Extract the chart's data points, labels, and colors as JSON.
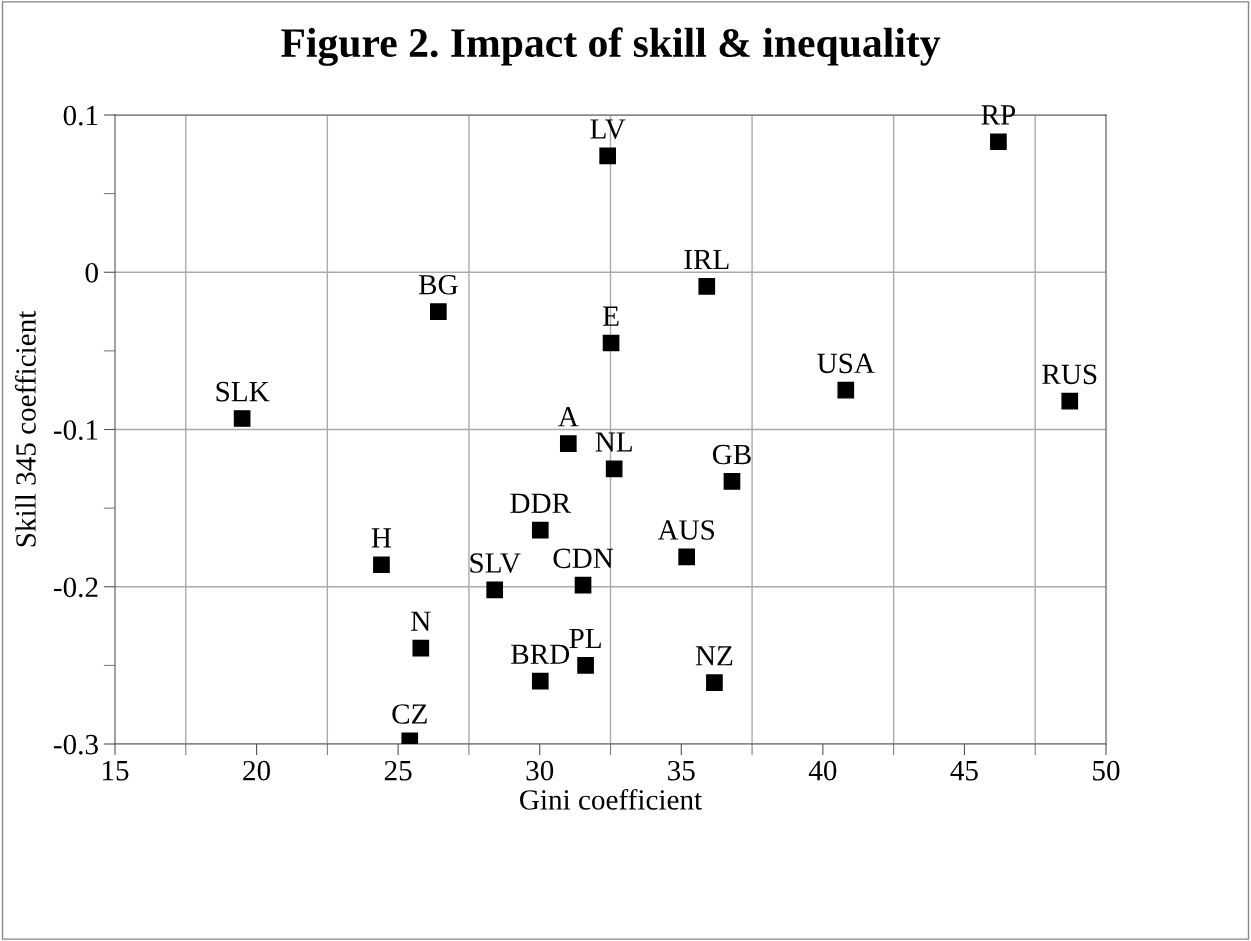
{
  "chart_data": {
    "type": "scatter",
    "title": "Figure 2. Impact of skill & inequality",
    "xlabel": "Gini coefficient",
    "ylabel": "Skill 345 coefficient",
    "x": [
      19.49,
      26.42,
      24.41,
      25.8,
      25.41,
      28.41,
      30.02,
      30.02,
      31.01,
      31.53,
      31.62,
      32.52,
      32.4,
      32.63,
      35.9,
      40.81,
      48.72,
      46.2,
      36.79,
      35.19,
      36.17
    ],
    "series": [
      {
        "color": "#000000",
        "values": [
          -0.093,
          -0.025,
          -0.186,
          -0.239,
          -0.298,
          -0.202,
          -0.164,
          -0.26,
          -0.109,
          -0.199,
          -0.25,
          -0.045,
          0.074,
          -0.125,
          -0.009,
          -0.075,
          -0.082,
          0.083,
          -0.133,
          -0.181,
          -0.261
        ]
      }
    ],
    "marker": "square",
    "annotations": [
      {
        "text": "SLK",
        "x": 19.49,
        "y": -0.093
      },
      {
        "text": "BG",
        "x": 26.42,
        "y": -0.025
      },
      {
        "text": "H",
        "x": 24.41,
        "y": -0.186
      },
      {
        "text": "N",
        "x": 25.8,
        "y": -0.239
      },
      {
        "text": "CZ",
        "x": 25.41,
        "y": -0.298
      },
      {
        "text": "SLV",
        "x": 28.41,
        "y": -0.202
      },
      {
        "text": "DDR",
        "x": 30.02,
        "y": -0.164
      },
      {
        "text": "BRD",
        "x": 30.02,
        "y": -0.26
      },
      {
        "text": "A",
        "x": 31.01,
        "y": -0.109
      },
      {
        "text": "CDN",
        "x": 31.53,
        "y": -0.199
      },
      {
        "text": "PL",
        "x": 31.62,
        "y": -0.25
      },
      {
        "text": "E",
        "x": 32.52,
        "y": -0.045
      },
      {
        "text": "LV",
        "x": 32.4,
        "y": 0.074
      },
      {
        "text": "NL",
        "x": 32.63,
        "y": -0.125
      },
      {
        "text": "IRL",
        "x": 35.9,
        "y": -0.009
      },
      {
        "text": "USA",
        "x": 40.81,
        "y": -0.075
      },
      {
        "text": "RUS",
        "x": 48.72,
        "y": -0.082
      },
      {
        "text": "RP",
        "x": 46.2,
        "y": 0.083
      },
      {
        "text": "GB",
        "x": 36.79,
        "y": -0.133
      },
      {
        "text": "AUS",
        "x": 35.19,
        "y": -0.181
      },
      {
        "text": "NZ",
        "x": 36.17,
        "y": -0.261
      }
    ],
    "xlim": [
      15,
      50
    ],
    "xticks": [
      15,
      {
        "value": 17.5,
        "label": null
      },
      20,
      {
        "value": 22.5,
        "label": null
      },
      25,
      {
        "value": 27.5,
        "label": null
      },
      30,
      {
        "value": 32.5,
        "label": null
      },
      35,
      {
        "value": 37.5,
        "label": null
      },
      40,
      {
        "value": 42.5,
        "label": null
      },
      45,
      {
        "value": 47.5,
        "label": null
      },
      50
    ],
    "ylim": [
      -0.3,
      0.1
    ],
    "yticks": [
      -0.3,
      {
        "value": -0.25,
        "label": null
      },
      -0.2,
      {
        "value": -0.15,
        "label": null
      },
      -0.1,
      {
        "value": -0.05,
        "label": null
      },
      0,
      {
        "value": 0.05,
        "label": null
      },
      0.1
    ],
    "grid": true,
    "legend": false
  }
}
